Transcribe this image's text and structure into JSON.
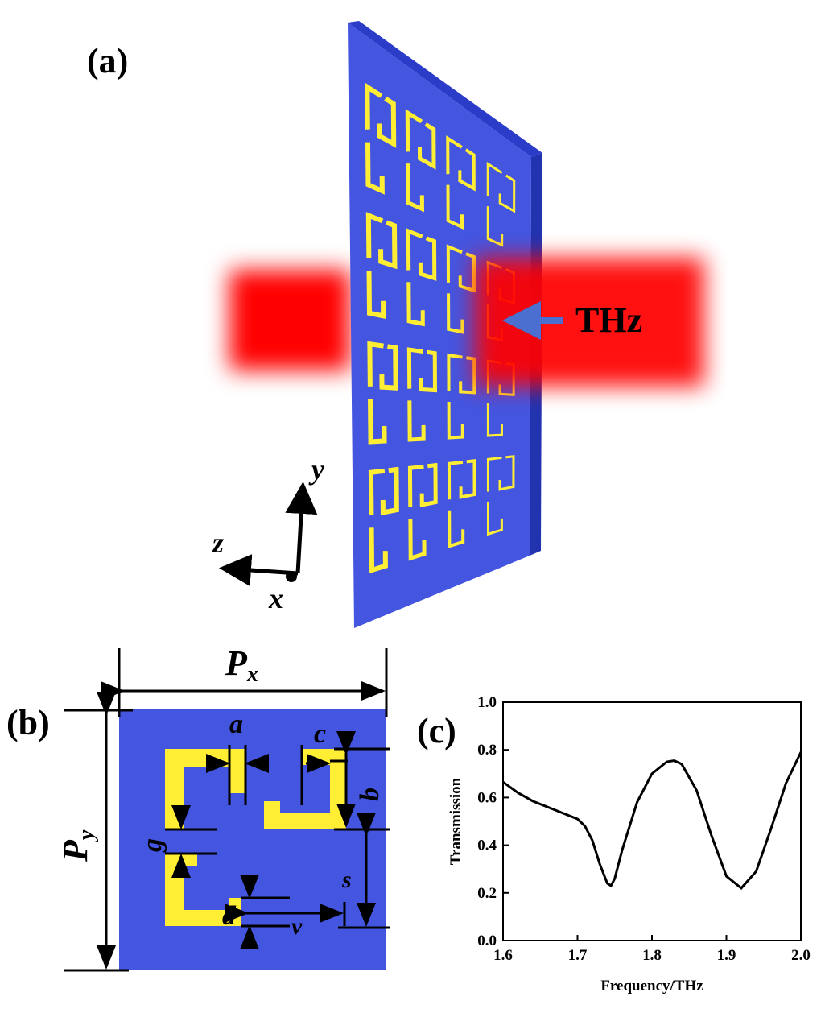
{
  "panel_a": {
    "label": "(a)",
    "beam_label": "THz",
    "axes": {
      "x": "x",
      "y": "y",
      "z": "z"
    }
  },
  "panel_b": {
    "label": "(b)",
    "px": {
      "main": "P",
      "sub": "x"
    },
    "py": {
      "main": "P",
      "sub": "y"
    },
    "dims": {
      "a": "a",
      "b": "b",
      "c": "c",
      "d": "d",
      "g": "g",
      "s": "s",
      "v": "v"
    }
  },
  "panel_c": {
    "label": "(c)"
  },
  "chart_data": {
    "type": "line",
    "xlabel": "Frequency/THz",
    "ylabel": "Transmission",
    "color": "#000000",
    "x": [
      1.6,
      1.62,
      1.64,
      1.66,
      1.68,
      1.7,
      1.71,
      1.72,
      1.73,
      1.74,
      1.745,
      1.75,
      1.76,
      1.78,
      1.8,
      1.82,
      1.83,
      1.84,
      1.86,
      1.88,
      1.9,
      1.92,
      1.94,
      1.96,
      1.98,
      2.0
    ],
    "values": [
      0.665,
      0.62,
      0.585,
      0.56,
      0.535,
      0.51,
      0.48,
      0.42,
      0.32,
      0.24,
      0.23,
      0.26,
      0.38,
      0.58,
      0.7,
      0.75,
      0.755,
      0.74,
      0.63,
      0.44,
      0.27,
      0.22,
      0.29,
      0.47,
      0.66,
      0.79
    ],
    "xlim": [
      1.6,
      2.0
    ],
    "ylim": [
      0,
      1.0
    ],
    "xticks": [
      1.6,
      1.7,
      1.8,
      1.9,
      {
        "value": 2.0,
        "label": "2.0"
      }
    ],
    "yticks": [
      {
        "value": 0,
        "label": "0.0"
      },
      0.2,
      0.4,
      0.6,
      0.8,
      {
        "value": 1.0,
        "label": "1.0"
      }
    ]
  }
}
